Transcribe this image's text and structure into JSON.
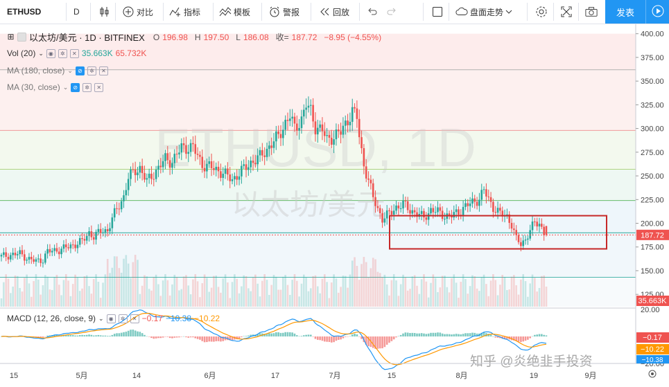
{
  "toolbar": {
    "symbol": "ETHUSD",
    "interval": "D",
    "compare": "对比",
    "indicators": "指标",
    "templates": "模板",
    "alert": "警报",
    "replay": "回放",
    "market_trend": "盘面走势",
    "publish": "发表"
  },
  "legend": {
    "title": "以太坊/美元 · 1D · BITFINEX",
    "o_label": "O",
    "o_value": "196.98",
    "h_label": "H",
    "h_value": "197.50",
    "l_label": "L",
    "l_value": "186.08",
    "c_label": "收=",
    "c_value": "187.72",
    "change": "−8.95 (−4.55%)",
    "vol_label": "Vol (20)",
    "vol_value1": "35.663K",
    "vol_value2": "65.732K",
    "ma180": "MA (180, close)",
    "ma30": "MA (30, close)",
    "macd_label": "MACD (12, 26, close, 9)",
    "macd_v1": "−0.17",
    "macd_v2": "−10.38",
    "macd_v3": "−10.22"
  },
  "watermark": {
    "symbol": "ETHUSD, 1D",
    "name": "以太坊/美元",
    "zhihu": "知乎 @炎绝韭手投资"
  },
  "price_axis": {
    "labels": [
      "400.00",
      "375.00",
      "350.00",
      "325.00",
      "300.00",
      "275.00",
      "250.00",
      "225.00",
      "200.00",
      "175.00",
      "150.00",
      "125.00"
    ],
    "current_price": "187.72",
    "current_volume": "35.663K"
  },
  "macd_axis": {
    "labels": [
      "20.00",
      "0.00",
      "−20.00"
    ],
    "tags": [
      "−0.17",
      "−10.22",
      "−10.38"
    ]
  },
  "time_axis": {
    "labels": [
      "15",
      "5月",
      "14",
      "6月",
      "17",
      "7月",
      "15",
      "8月",
      "19",
      "9月"
    ]
  },
  "colors": {
    "up": "#26a69a",
    "down": "#ef5350",
    "accent": "#2196f3",
    "box": "#c62828"
  },
  "chart_data": {
    "type": "candlestick",
    "symbol": "ETHUSD",
    "exchange": "BITFINEX",
    "interval": "1D",
    "ylim": [
      112,
      410
    ],
    "horizontal_lines": [
      362,
      298,
      257,
      224,
      190,
      143
    ],
    "highlight_box": {
      "price_range": [
        173,
        208
      ]
    },
    "ohlc": {
      "open": 196.98,
      "high": 197.5,
      "low": 186.08,
      "close": 187.72,
      "change": -8.95,
      "change_pct": -4.55
    },
    "volume": {
      "last": "35.663K",
      "ma20": "65.732K"
    },
    "close_path": [
      [
        0,
        165
      ],
      [
        8,
        168
      ],
      [
        12,
        162
      ],
      [
        15,
        160
      ],
      [
        18,
        162
      ],
      [
        20,
        170
      ],
      [
        25,
        172
      ],
      [
        30,
        176
      ],
      [
        35,
        181
      ],
      [
        38,
        190
      ],
      [
        40,
        186
      ],
      [
        44,
        193
      ],
      [
        46,
        192
      ],
      [
        48,
        205
      ],
      [
        50,
        215
      ],
      [
        53,
        228
      ],
      [
        55,
        248
      ],
      [
        58,
        256
      ],
      [
        60,
        258
      ],
      [
        63,
        244
      ],
      [
        65,
        250
      ],
      [
        68,
        258
      ],
      [
        71,
        268
      ],
      [
        74,
        265
      ],
      [
        78,
        280
      ],
      [
        83,
        280
      ],
      [
        87,
        262
      ],
      [
        92,
        258
      ],
      [
        96,
        253
      ],
      [
        100,
        246
      ],
      [
        104,
        255
      ],
      [
        108,
        264
      ],
      [
        112,
        270
      ],
      [
        115,
        278
      ],
      [
        120,
        292
      ],
      [
        123,
        306
      ],
      [
        125,
        313
      ],
      [
        127,
        300
      ],
      [
        130,
        310
      ],
      [
        132,
        325
      ],
      [
        134,
        318
      ],
      [
        136,
        302
      ],
      [
        139,
        298
      ],
      [
        141,
        288
      ],
      [
        144,
        292
      ],
      [
        147,
        296
      ],
      [
        149,
        305
      ],
      [
        152,
        318
      ],
      [
        154,
        312
      ],
      [
        155,
        292
      ],
      [
        156,
        276
      ],
      [
        157,
        262
      ],
      [
        159,
        245
      ],
      [
        161,
        227
      ],
      [
        163,
        215
      ],
      [
        165,
        205
      ],
      [
        168,
        210
      ],
      [
        171,
        217
      ],
      [
        174,
        220
      ],
      [
        177,
        214
      ],
      [
        180,
        210
      ],
      [
        183,
        206
      ],
      [
        186,
        214
      ],
      [
        189,
        212
      ],
      [
        192,
        208
      ],
      [
        195,
        208
      ],
      [
        198,
        212
      ],
      [
        201,
        218
      ],
      [
        204,
        222
      ],
      [
        207,
        226
      ],
      [
        209,
        235
      ],
      [
        211,
        225
      ],
      [
        213,
        217
      ],
      [
        216,
        210
      ],
      [
        219,
        207
      ],
      [
        221,
        199
      ],
      [
        223,
        183
      ],
      [
        225,
        178
      ],
      [
        227,
        183
      ],
      [
        229,
        193
      ],
      [
        231,
        200
      ],
      [
        233,
        200
      ],
      [
        235,
        190
      ],
      [
        236,
        188
      ]
    ],
    "macd": {
      "macd": -10.38,
      "signal": -10.22,
      "histogram": -0.17
    }
  }
}
